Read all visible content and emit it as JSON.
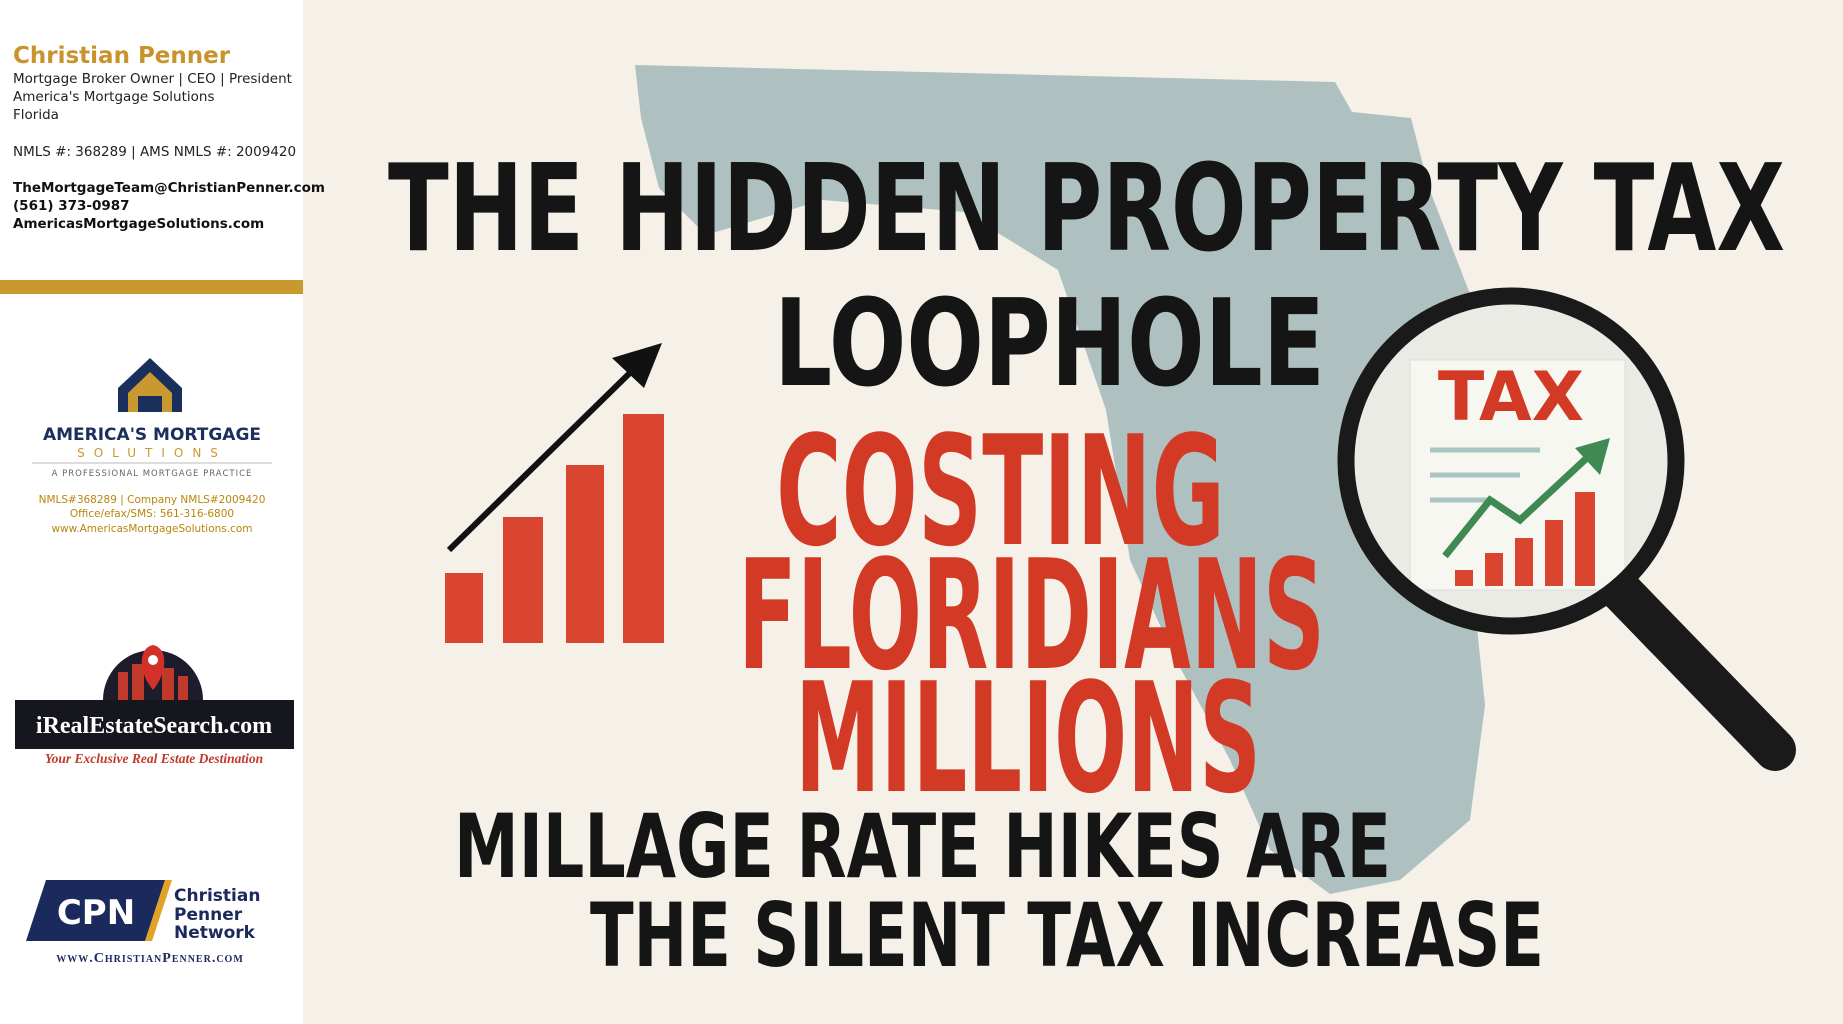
{
  "sidebar": {
    "name": "Christian Penner",
    "lines": [
      "Mortgage Broker Owner | CEO | President",
      "America's Mortgage Solutions",
      "Florida",
      "NMLS #: 368289 | AMS NMLS #: 2009420"
    ],
    "contacts": [
      "TheMortgageTeam@ChristianPenner.com",
      "(561) 373-0987",
      "AmericasMortgageSolutions.com"
    ],
    "logo_ams": {
      "name": "AMERICA'S MORTGAGE",
      "sub": "SOLUTIONS",
      "tagline": "A PROFESSIONAL MORTGAGE PRACTICE",
      "details": [
        "NMLS#368289 | Company NMLS#2009420",
        "Office/efax/SMS: 561-316-6800",
        "www.AmericasMortgageSolutions.com"
      ]
    },
    "logo_ires": {
      "name": "iRealEstateSearch.com",
      "tagline": "Your Exclusive Real Estate Destination"
    },
    "logo_cpn": {
      "mark": "CPN",
      "name": [
        "Christian",
        "Penner",
        "Network"
      ],
      "url": "www.ChristianPenner.com"
    }
  },
  "main": {
    "title": [
      "THE HIDDEN PROPERTY TAX",
      "LOOPHOLE"
    ],
    "highlight": [
      "COSTING",
      "FLORIDIANS",
      "MILLIONS"
    ],
    "subtitle": [
      "MILLAGE RATE HIKES ARE",
      "THE SILENT TAX INCREASE"
    ],
    "badge": "TAX"
  }
}
